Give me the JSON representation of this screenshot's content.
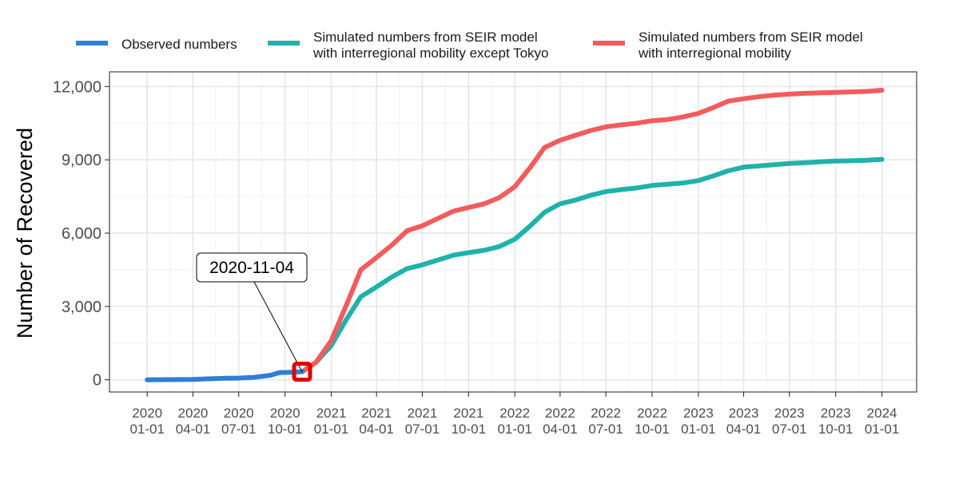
{
  "chart_data": {
    "type": "line",
    "ylabel": "Number of Recovered",
    "xlabel": "",
    "x_ticks": [
      {
        "date": "2020-01-01",
        "line1": "2020",
        "line2": "01-01"
      },
      {
        "date": "2020-04-01",
        "line1": "2020",
        "line2": "04-01"
      },
      {
        "date": "2020-07-01",
        "line1": "2020",
        "line2": "07-01"
      },
      {
        "date": "2020-10-01",
        "line1": "2020",
        "line2": "10-01"
      },
      {
        "date": "2021-01-01",
        "line1": "2021",
        "line2": "01-01"
      },
      {
        "date": "2021-04-01",
        "line1": "2021",
        "line2": "04-01"
      },
      {
        "date": "2021-07-01",
        "line1": "2021",
        "line2": "07-01"
      },
      {
        "date": "2021-10-01",
        "line1": "2021",
        "line2": "10-01"
      },
      {
        "date": "2022-01-01",
        "line1": "2022",
        "line2": "01-01"
      },
      {
        "date": "2022-04-01",
        "line1": "2022",
        "line2": "04-01"
      },
      {
        "date": "2022-07-01",
        "line1": "2022",
        "line2": "07-01"
      },
      {
        "date": "2022-10-01",
        "line1": "2022",
        "line2": "10-01"
      },
      {
        "date": "2023-01-01",
        "line1": "2023",
        "line2": "01-01"
      },
      {
        "date": "2023-04-01",
        "line1": "2023",
        "line2": "04-01"
      },
      {
        "date": "2023-07-01",
        "line1": "2023",
        "line2": "07-01"
      },
      {
        "date": "2023-10-01",
        "line1": "2023",
        "line2": "10-01"
      },
      {
        "date": "2024-01-01",
        "line1": "2024",
        "line2": "01-01"
      }
    ],
    "y_ticks": [
      {
        "value": 0,
        "label": "0"
      },
      {
        "value": 3000,
        "label": "3,000"
      },
      {
        "value": 6000,
        "label": "6,000"
      },
      {
        "value": 9000,
        "label": "9,000"
      },
      {
        "value": 12000,
        "label": "12,000"
      }
    ],
    "xlim": [
      "2019-10-18",
      "2024-03-10"
    ],
    "ylim": [
      -500,
      12600
    ],
    "grid": true,
    "legend_position": "top",
    "series": [
      {
        "name": "Observed numbers",
        "color": "#2f7ed8",
        "points": [
          [
            "2020-01-01",
            0
          ],
          [
            "2020-02-15",
            5
          ],
          [
            "2020-04-01",
            15
          ],
          [
            "2020-05-01",
            40
          ],
          [
            "2020-06-01",
            60
          ],
          [
            "2020-07-01",
            70
          ],
          [
            "2020-08-01",
            100
          ],
          [
            "2020-09-01",
            180
          ],
          [
            "2020-09-20",
            290
          ],
          [
            "2020-10-15",
            310
          ],
          [
            "2020-11-04",
            330
          ]
        ]
      },
      {
        "name": "Simulated numbers from SEIR model with interregional mobility except Tokyo",
        "legend_lines": [
          "Simulated numbers from SEIR model",
          "with interregional mobility except Tokyo"
        ],
        "color": "#20b2aa",
        "points": [
          [
            "2020-11-04",
            330
          ],
          [
            "2020-12-01",
            700
          ],
          [
            "2021-01-01",
            1400
          ],
          [
            "2021-02-01",
            2500
          ],
          [
            "2021-03-01",
            3400
          ],
          [
            "2021-04-01",
            3800
          ],
          [
            "2021-05-01",
            4200
          ],
          [
            "2021-06-01",
            4550
          ],
          [
            "2021-07-01",
            4700
          ],
          [
            "2021-08-01",
            4900
          ],
          [
            "2021-09-01",
            5100
          ],
          [
            "2021-10-01",
            5200
          ],
          [
            "2021-11-01",
            5300
          ],
          [
            "2021-12-01",
            5450
          ],
          [
            "2022-01-01",
            5750
          ],
          [
            "2022-02-01",
            6300
          ],
          [
            "2022-03-01",
            6850
          ],
          [
            "2022-04-01",
            7200
          ],
          [
            "2022-05-01",
            7350
          ],
          [
            "2022-06-01",
            7550
          ],
          [
            "2022-07-01",
            7700
          ],
          [
            "2022-08-01",
            7780
          ],
          [
            "2022-09-01",
            7850
          ],
          [
            "2022-10-01",
            7950
          ],
          [
            "2022-11-01",
            8000
          ],
          [
            "2022-12-01",
            8050
          ],
          [
            "2023-01-01",
            8150
          ],
          [
            "2023-02-01",
            8350
          ],
          [
            "2023-03-01",
            8550
          ],
          [
            "2023-04-01",
            8700
          ],
          [
            "2023-05-01",
            8750
          ],
          [
            "2023-06-01",
            8800
          ],
          [
            "2023-07-01",
            8850
          ],
          [
            "2023-08-01",
            8880
          ],
          [
            "2023-09-01",
            8920
          ],
          [
            "2023-10-01",
            8950
          ],
          [
            "2023-11-01",
            8960
          ],
          [
            "2023-12-01",
            8980
          ],
          [
            "2024-01-01",
            9020
          ]
        ]
      },
      {
        "name": "Simulated numbers from SEIR model with interregional mobility",
        "legend_lines": [
          "Simulated numbers from SEIR model",
          "with interregional mobility"
        ],
        "color": "#f25c5c",
        "points": [
          [
            "2020-11-04",
            330
          ],
          [
            "2020-12-01",
            700
          ],
          [
            "2021-01-01",
            1600
          ],
          [
            "2021-02-01",
            3100
          ],
          [
            "2021-03-01",
            4500
          ],
          [
            "2021-04-01",
            5000
          ],
          [
            "2021-05-01",
            5500
          ],
          [
            "2021-06-01",
            6100
          ],
          [
            "2021-07-01",
            6300
          ],
          [
            "2021-08-01",
            6600
          ],
          [
            "2021-09-01",
            6900
          ],
          [
            "2021-10-01",
            7050
          ],
          [
            "2021-11-01",
            7200
          ],
          [
            "2021-12-01",
            7450
          ],
          [
            "2022-01-01",
            7900
          ],
          [
            "2022-02-01",
            8700
          ],
          [
            "2022-03-01",
            9500
          ],
          [
            "2022-04-01",
            9800
          ],
          [
            "2022-05-01",
            10000
          ],
          [
            "2022-06-01",
            10200
          ],
          [
            "2022-07-01",
            10350
          ],
          [
            "2022-08-01",
            10430
          ],
          [
            "2022-09-01",
            10500
          ],
          [
            "2022-10-01",
            10600
          ],
          [
            "2022-11-01",
            10650
          ],
          [
            "2022-12-01",
            10750
          ],
          [
            "2023-01-01",
            10900
          ],
          [
            "2023-02-01",
            11150
          ],
          [
            "2023-03-01",
            11400
          ],
          [
            "2023-04-01",
            11500
          ],
          [
            "2023-05-01",
            11580
          ],
          [
            "2023-06-01",
            11650
          ],
          [
            "2023-07-01",
            11690
          ],
          [
            "2023-08-01",
            11720
          ],
          [
            "2023-09-01",
            11740
          ],
          [
            "2023-10-01",
            11760
          ],
          [
            "2023-11-01",
            11780
          ],
          [
            "2023-12-01",
            11800
          ],
          [
            "2024-01-01",
            11850
          ]
        ]
      }
    ],
    "annotation": {
      "label": "2020-11-04",
      "point": [
        "2020-11-04",
        330
      ],
      "marker_color": "#e00000"
    }
  }
}
